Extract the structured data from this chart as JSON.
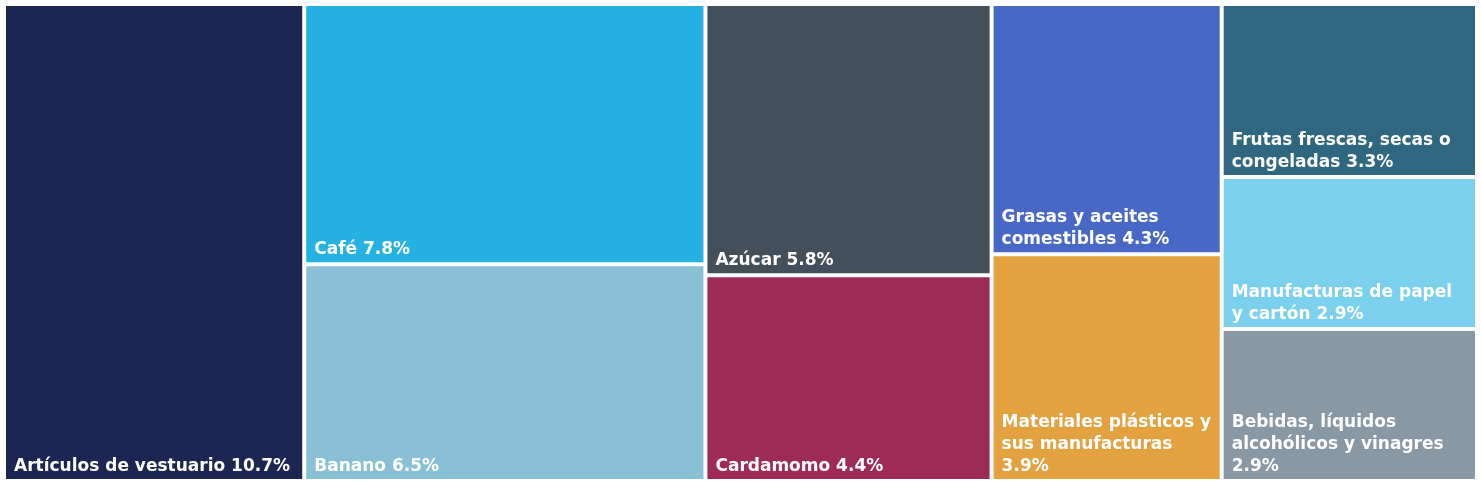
{
  "chart_data": {
    "type": "other",
    "categories": [
      "Artículos de vestuario",
      "Café",
      "Banano",
      "Azúcar",
      "Cardamomo",
      "Grasas y aceites comestibles",
      "Materiales plásticos y sus manufacturas",
      "Frutas frescas, secas o congeladas",
      "Manufacturas de papel y cartón",
      "Bebidas, líquidos alcohólicos y vinagres"
    ],
    "values": [
      10.7,
      7.8,
      6.5,
      5.8,
      4.4,
      4.3,
      3.9,
      3.3,
      2.9,
      2.9
    ],
    "value_labels": [
      "10.7%",
      "7.8%",
      "6.5%",
      "5.8%",
      "4.4%",
      "4.3%",
      "3.9%",
      "3.3%",
      "2.9%",
      "2.9%"
    ],
    "colors": [
      "#1b2752",
      "#25b2e2",
      "#8ac0d5",
      "#435059",
      "#9e2b55",
      "#4868c6",
      "#e3a23f",
      "#2f6781",
      "#7bd0ee",
      "#8898a4"
    ]
  }
}
